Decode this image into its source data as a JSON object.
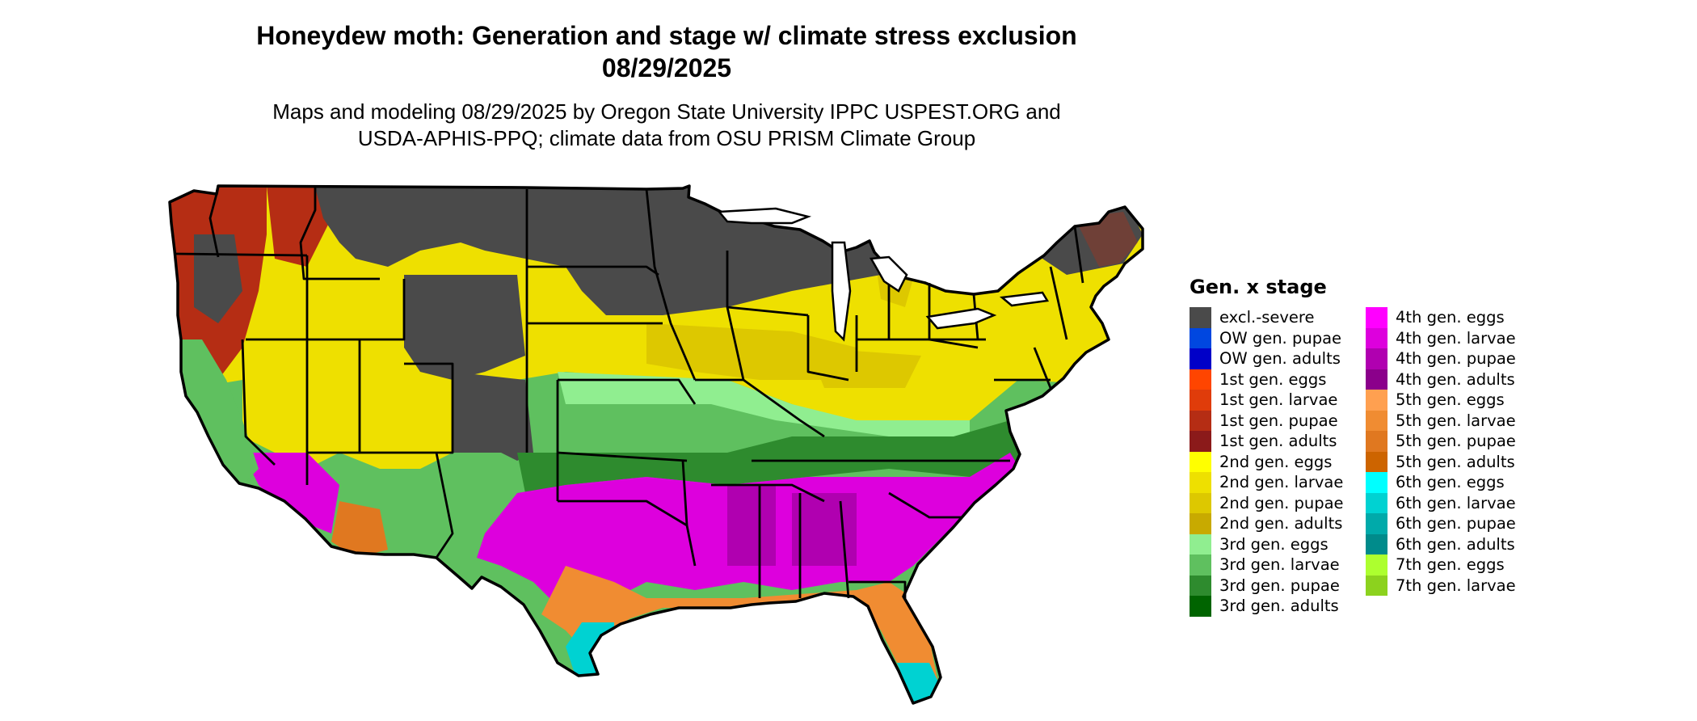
{
  "title": {
    "line1": "Honeydew moth: Generation and stage w/ climate stress exclusion",
    "line2": "08/29/2025"
  },
  "subtitle": {
    "line1": "Maps and modeling 08/29/2025 by Oregon State University IPPC USPEST.ORG and",
    "line2": "USDA-APHIS-PPQ; climate data from OSU PRISM Climate Group"
  },
  "legend": {
    "title": "Gen. x stage",
    "items": [
      {
        "label": "excl.-severe",
        "color": "#4a4a4a"
      },
      {
        "label": "OW gen. pupae",
        "color": "#0047e0"
      },
      {
        "label": "OW gen. adults",
        "color": "#0000c8"
      },
      {
        "label": "1st gen. eggs",
        "color": "#ff4500"
      },
      {
        "label": "1st gen. larvae",
        "color": "#e03c0a"
      },
      {
        "label": "1st gen. pupae",
        "color": "#b52d14"
      },
      {
        "label": "1st gen. adults",
        "color": "#8b1a1a"
      },
      {
        "label": "2nd gen. eggs",
        "color": "#ffff00"
      },
      {
        "label": "2nd gen. larvae",
        "color": "#eee000"
      },
      {
        "label": "2nd gen. pupae",
        "color": "#ddc800"
      },
      {
        "label": "2nd gen. adults",
        "color": "#c8aa00"
      },
      {
        "label": "3rd gen. eggs",
        "color": "#90ee90"
      },
      {
        "label": "3rd gen. larvae",
        "color": "#5fc05f"
      },
      {
        "label": "3rd gen. pupae",
        "color": "#2e8b2e"
      },
      {
        "label": "3rd gen. adults",
        "color": "#006400"
      },
      {
        "label": "4th gen. eggs",
        "color": "#ff00ff"
      },
      {
        "label": "4th gen. larvae",
        "color": "#dd00dd"
      },
      {
        "label": "4th gen. pupae",
        "color": "#b000b0"
      },
      {
        "label": "4th gen. adults",
        "color": "#8b008b"
      },
      {
        "label": "5th gen. eggs",
        "color": "#ffa050"
      },
      {
        "label": "5th gen. larvae",
        "color": "#f08c32"
      },
      {
        "label": "5th gen. pupae",
        "color": "#e07820"
      },
      {
        "label": "5th gen. adults",
        "color": "#cd6400"
      },
      {
        "label": "6th gen. eggs",
        "color": "#00ffff"
      },
      {
        "label": "6th gen. larvae",
        "color": "#00d2d2"
      },
      {
        "label": "6th gen. pupae",
        "color": "#00aaaa"
      },
      {
        "label": "6th gen. adults",
        "color": "#008b8b"
      },
      {
        "label": "7th gen. eggs",
        "color": "#adff2f"
      },
      {
        "label": "7th gen. larvae",
        "color": "#8cd21e"
      }
    ]
  }
}
